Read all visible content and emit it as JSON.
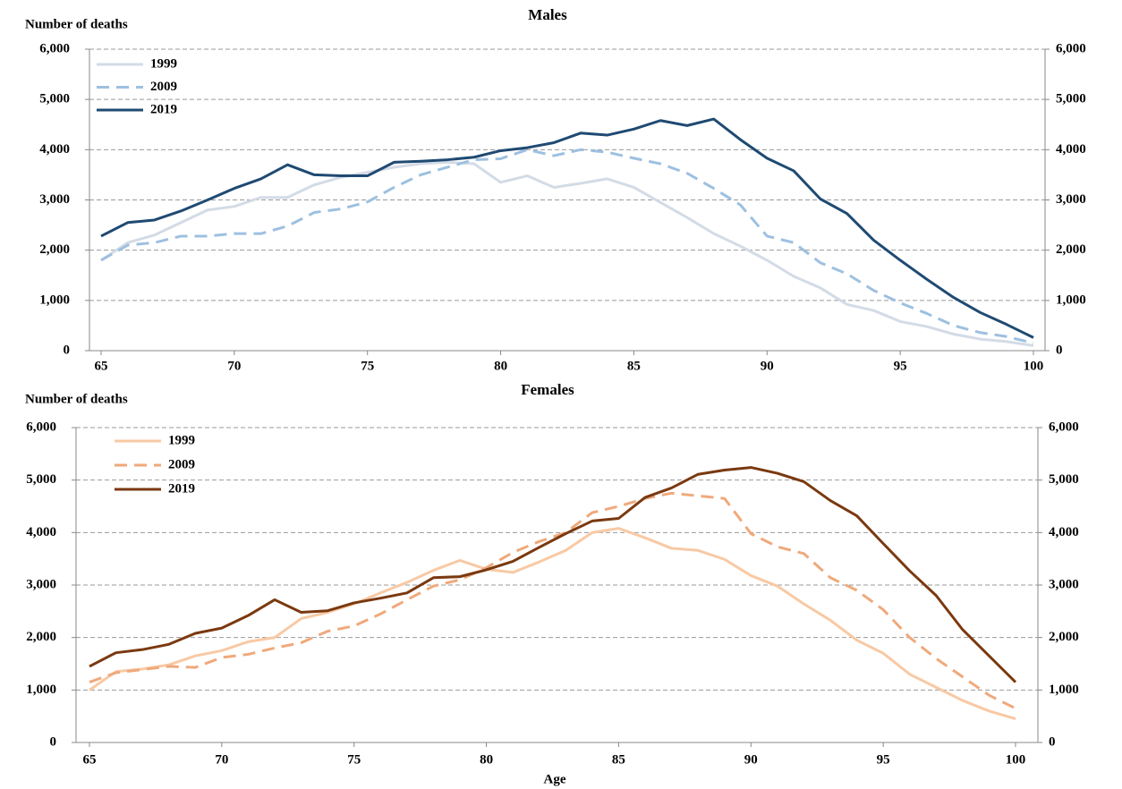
{
  "chart_data": [
    {
      "type": "line",
      "title": "Males",
      "y_label": "Number of deaths",
      "x": [
        65,
        66,
        67,
        68,
        69,
        70,
        71,
        72,
        73,
        74,
        75,
        76,
        77,
        78,
        79,
        80,
        81,
        82,
        83,
        84,
        85,
        86,
        87,
        88,
        89,
        90,
        91,
        92,
        93,
        94,
        95,
        96,
        97,
        98,
        99,
        100
      ],
      "xlim": [
        65,
        100
      ],
      "xticks": [
        65,
        70,
        75,
        80,
        85,
        90,
        95,
        100
      ],
      "ylim": [
        0,
        6000
      ],
      "yticks": [
        0,
        {
          "value": 1000,
          "label": "1,000"
        },
        {
          "value": 2000,
          "label": "2,000"
        },
        {
          "value": 3000,
          "label": "3,000"
        },
        {
          "value": 4000,
          "label": "4,000"
        },
        {
          "value": 5000,
          "label": "5,000"
        },
        {
          "value": 6000,
          "label": "6,000"
        }
      ],
      "y2lim": [
        0,
        6000
      ],
      "y2ticks": [
        0,
        {
          "value": 1000,
          "label": "1,000"
        },
        {
          "value": 2000,
          "label": "2,000"
        },
        {
          "value": 3000,
          "label": "3,000"
        },
        {
          "value": 4000,
          "label": "4,000"
        },
        {
          "value": 5000,
          "label": "5,000"
        },
        {
          "value": 6000,
          "label": "6,000"
        }
      ],
      "grid": true,
      "legend": "top-left",
      "series": [
        {
          "name": "1999",
          "color": "#d3dbe6",
          "style": "solid",
          "values": [
            1800,
            2150,
            2300,
            2550,
            2800,
            2870,
            3050,
            3050,
            3300,
            3450,
            3550,
            3650,
            3720,
            3750,
            3720,
            3350,
            3480,
            3250,
            3330,
            3420,
            3250,
            2950,
            2650,
            2330,
            2080,
            1800,
            1480,
            1250,
            920,
            800,
            580,
            480,
            330,
            230,
            180,
            100
          ]
        },
        {
          "name": "2009",
          "color": "#9dc0e0",
          "style": "dashed",
          "values": [
            1800,
            2100,
            2150,
            2280,
            2280,
            2330,
            2330,
            2480,
            2750,
            2820,
            2960,
            3250,
            3500,
            3650,
            3800,
            3820,
            4000,
            3880,
            4000,
            3950,
            3830,
            3720,
            3530,
            3230,
            2900,
            2280,
            2150,
            1750,
            1530,
            1200,
            950,
            740,
            500,
            360,
            280,
            150
          ]
        },
        {
          "name": "2019",
          "color": "#1f4a72",
          "style": "solid",
          "values": [
            2280,
            2550,
            2600,
            2780,
            3000,
            3230,
            3420,
            3700,
            3500,
            3480,
            3480,
            3750,
            3770,
            3800,
            3850,
            3980,
            4040,
            4140,
            4330,
            4290,
            4410,
            4580,
            4480,
            4610,
            4200,
            3830,
            3580,
            3020,
            2730,
            2200,
            1800,
            1420,
            1060,
            760,
            520,
            260
          ]
        }
      ]
    },
    {
      "type": "line",
      "title": "Females",
      "y_label": "Number of deaths",
      "x_label": "Age",
      "x": [
        65,
        66,
        67,
        68,
        69,
        70,
        71,
        72,
        73,
        74,
        75,
        76,
        77,
        78,
        79,
        80,
        81,
        82,
        83,
        84,
        85,
        86,
        87,
        88,
        89,
        90,
        91,
        92,
        93,
        94,
        95,
        96,
        97,
        98,
        99,
        100
      ],
      "xlim": [
        65,
        100
      ],
      "xticks": [
        65,
        70,
        75,
        80,
        85,
        90,
        95,
        100
      ],
      "ylim": [
        0,
        6000
      ],
      "yticks": [
        0,
        {
          "value": 1000,
          "label": "1,000"
        },
        {
          "value": 2000,
          "label": "2,000"
        },
        {
          "value": 3000,
          "label": "3,000"
        },
        {
          "value": 4000,
          "label": "4,000"
        },
        {
          "value": 5000,
          "label": "5,000"
        },
        {
          "value": 6000,
          "label": "6,000"
        }
      ],
      "y2lim": [
        0,
        6000
      ],
      "y2ticks": [
        0,
        {
          "value": 1000,
          "label": "1,000"
        },
        {
          "value": 2000,
          "label": "2,000"
        },
        {
          "value": 3000,
          "label": "3,000"
        },
        {
          "value": 4000,
          "label": "4,000"
        },
        {
          "value": 5000,
          "label": "5,000"
        },
        {
          "value": 6000,
          "label": "6,000"
        }
      ],
      "grid": true,
      "legend": "top-left",
      "series": [
        {
          "name": "1999",
          "color": "#f8c9a4",
          "style": "solid",
          "values": [
            1000,
            1350,
            1400,
            1480,
            1650,
            1750,
            1920,
            2000,
            2360,
            2480,
            2640,
            2850,
            3050,
            3280,
            3470,
            3300,
            3240,
            3440,
            3660,
            4000,
            4080,
            3900,
            3700,
            3660,
            3490,
            3180,
            2980,
            2640,
            2330,
            1950,
            1700,
            1300,
            1050,
            800,
            600,
            450
          ]
        },
        {
          "name": "2009",
          "color": "#efa97b",
          "style": "dashed",
          "values": [
            1150,
            1330,
            1390,
            1450,
            1430,
            1620,
            1680,
            1800,
            1900,
            2120,
            2220,
            2450,
            2720,
            2980,
            3100,
            3330,
            3620,
            3830,
            4000,
            4380,
            4500,
            4650,
            4750,
            4700,
            4650,
            3980,
            3730,
            3600,
            3140,
            2900,
            2530,
            2000,
            1600,
            1250,
            900,
            650
          ]
        },
        {
          "name": "2019",
          "color": "#7a3910",
          "style": "solid",
          "values": [
            1450,
            1710,
            1770,
            1870,
            2080,
            2180,
            2420,
            2720,
            2480,
            2510,
            2660,
            2750,
            2850,
            3140,
            3160,
            3290,
            3450,
            3720,
            3980,
            4220,
            4270,
            4670,
            4850,
            5110,
            5190,
            5240,
            5130,
            4970,
            4610,
            4320,
            3790,
            3270,
            2800,
            2150,
            1650,
            1150
          ]
        }
      ]
    }
  ]
}
